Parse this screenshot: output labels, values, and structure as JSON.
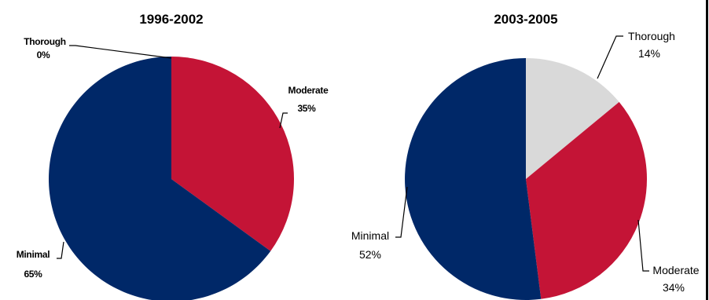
{
  "chart_data": [
    {
      "type": "pie",
      "title": "1996-2002",
      "slices": [
        {
          "name": "Thorough",
          "label": "Thorough",
          "pct_label": "0%",
          "value": 0,
          "color": "#d9d9d9"
        },
        {
          "name": "Moderate",
          "label": "Moderate",
          "pct_label": "35%",
          "value": 35,
          "color": "#c41436"
        },
        {
          "name": "Minimal",
          "label": "Minimal",
          "pct_label": "65%",
          "value": 65,
          "color": "#002868"
        }
      ]
    },
    {
      "type": "pie",
      "title": "2003-2005",
      "slices": [
        {
          "name": "Thorough",
          "label": "Thorough",
          "pct_label": "14%",
          "value": 14,
          "color": "#d9d9d9"
        },
        {
          "name": "Moderate",
          "label": "Moderate",
          "pct_label": "34%",
          "value": 34,
          "color": "#c41436"
        },
        {
          "name": "Minimal",
          "label": "Minimal",
          "pct_label": "52%",
          "value": 52,
          "color": "#002868"
        }
      ]
    }
  ]
}
